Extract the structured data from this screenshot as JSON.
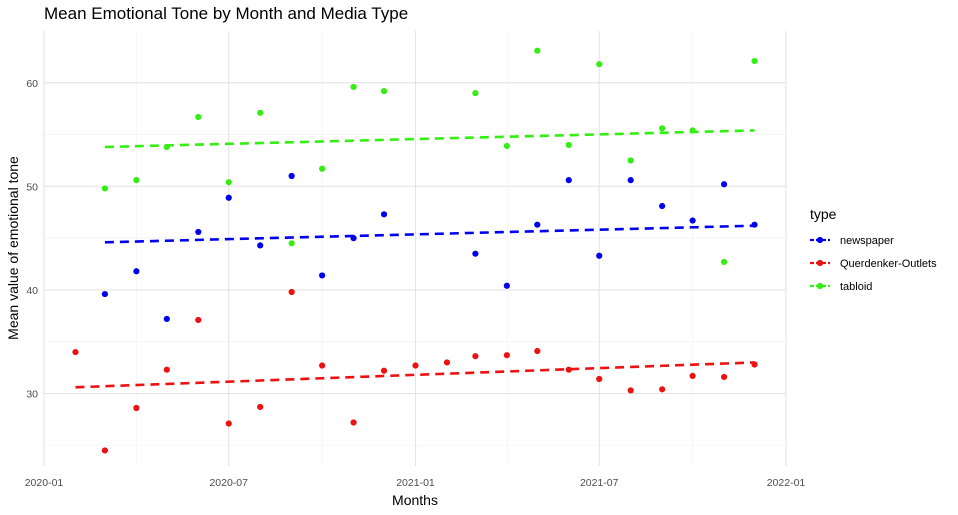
{
  "chart_data": {
    "type": "scatter",
    "title": "Mean Emotional Tone by Month and Media Type",
    "xlabel": "Months",
    "ylabel": "Mean value of emotional tone",
    "x_type": "date",
    "xlim": [
      "2020-01-01",
      "2022-01-01"
    ],
    "ylim": [
      23,
      65
    ],
    "x_ticks": [
      "2020-01",
      "2020-07",
      "2021-01",
      "2021-07",
      "2022-01"
    ],
    "y_ticks": [
      30,
      40,
      50,
      60
    ],
    "grid": true,
    "legend": {
      "title": "type",
      "position": "right"
    },
    "trend_lines": "linear, dashed",
    "series": [
      {
        "name": "newspaper",
        "color": "#0000ee",
        "x": [
          "2020-03-01",
          "2020-04-01",
          "2020-05-01",
          "2020-06-01",
          "2020-07-01",
          "2020-08-01",
          "2020-09-01",
          "2020-10-01",
          "2020-11-01",
          "2020-12-01",
          "2021-03-01",
          "2021-04-01",
          "2021-05-01",
          "2021-06-01",
          "2021-07-01",
          "2021-08-01",
          "2021-09-01",
          "2021-10-01",
          "2021-11-01",
          "2021-12-01"
        ],
        "y": [
          39.6,
          41.8,
          37.2,
          45.6,
          48.9,
          44.3,
          51.0,
          41.4,
          45.0,
          47.3,
          43.5,
          40.4,
          46.3,
          50.6,
          43.3,
          50.6,
          48.1,
          46.7,
          50.2,
          46.3
        ],
        "trend": {
          "x": [
            "2020-03-01",
            "2021-12-01"
          ],
          "y": [
            44.6,
            46.2
          ]
        }
      },
      {
        "name": "Querdenker-Outlets",
        "color": "#ee1111",
        "x": [
          "2020-02-01",
          "2020-03-01",
          "2020-04-01",
          "2020-05-01",
          "2020-06-01",
          "2020-07-01",
          "2020-08-01",
          "2020-09-01",
          "2020-10-01",
          "2020-11-01",
          "2020-12-01",
          "2021-01-01",
          "2021-02-01",
          "2021-03-01",
          "2021-04-01",
          "2021-05-01",
          "2021-06-01",
          "2021-07-01",
          "2021-08-01",
          "2021-09-01",
          "2021-10-01",
          "2021-11-01",
          "2021-12-01"
        ],
        "y": [
          34.0,
          24.5,
          28.6,
          32.3,
          37.1,
          27.1,
          28.7,
          39.8,
          32.7,
          27.2,
          32.2,
          32.7,
          33.0,
          33.6,
          33.7,
          34.1,
          32.3,
          31.4,
          30.3,
          30.4,
          31.7,
          31.6,
          32.8
        ],
        "trend": {
          "x": [
            "2020-02-01",
            "2021-12-01"
          ],
          "y": [
            30.6,
            33.0
          ]
        }
      },
      {
        "name": "tabloid",
        "color": "#33ee11",
        "x": [
          "2020-03-01",
          "2020-04-01",
          "2020-05-01",
          "2020-06-01",
          "2020-07-01",
          "2020-08-01",
          "2020-09-01",
          "2020-10-01",
          "2020-11-01",
          "2020-12-01",
          "2021-03-01",
          "2021-04-01",
          "2021-05-01",
          "2021-06-01",
          "2021-07-01",
          "2021-08-01",
          "2021-09-01",
          "2021-10-01",
          "2021-11-01",
          "2021-12-01"
        ],
        "y": [
          49.8,
          50.6,
          53.8,
          56.7,
          50.4,
          57.1,
          44.5,
          51.7,
          59.6,
          59.2,
          59.0,
          53.9,
          63.1,
          54.0,
          61.8,
          52.5,
          55.6,
          55.4,
          42.7,
          62.1
        ],
        "trend": {
          "x": [
            "2020-03-01",
            "2021-12-01"
          ],
          "y": [
            53.8,
            55.4
          ]
        }
      }
    ]
  }
}
